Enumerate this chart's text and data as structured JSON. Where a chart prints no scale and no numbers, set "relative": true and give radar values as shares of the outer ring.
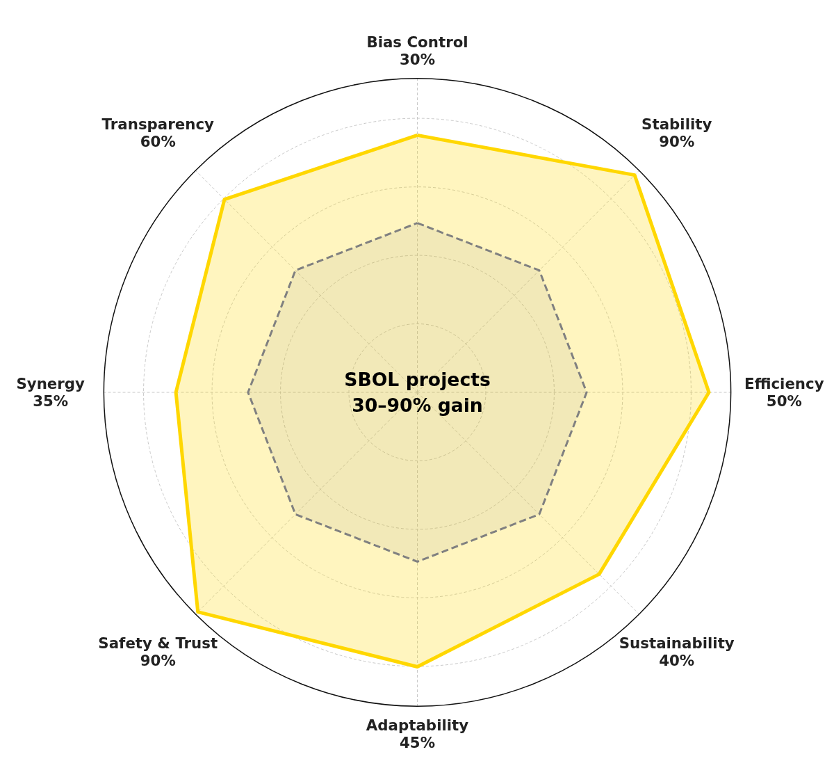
{
  "chart_data": {
    "type": "radar",
    "relative": true,
    "grid": true,
    "marker": "none",
    "categories": [
      "Bias Control\n30%",
      "Stability\n90%",
      "Efficiency\n50%",
      "Sustainability\n40%",
      "Adaptability\n45%",
      "Safety & Trust\n90%",
      "Synergy\n35%",
      "Transparency\n60%"
    ],
    "series": [
      {
        "color": "#ffd700",
        "values": [
          0.82,
          0.98,
          0.93,
          0.82,
          0.875,
          0.99,
          0.77,
          0.87
        ],
        "line_style": "solid"
      },
      {
        "color": "#808080",
        "values": [
          0.54,
          0.55,
          0.54,
          0.55,
          0.54,
          0.55,
          0.54,
          0.55
        ],
        "line_style": "dashed"
      }
    ],
    "annotations": [
      "SBOL projects\n30–90% gain"
    ]
  }
}
